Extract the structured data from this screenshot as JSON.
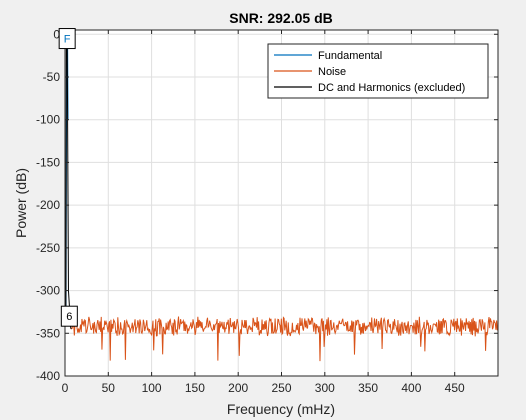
{
  "chart_data": {
    "type": "line",
    "title": "SNR: 292.05 dB",
    "xlabel": "Frequency (mHz)",
    "ylabel": "Power (dB)",
    "xlim": [
      0,
      500
    ],
    "ylim": [
      -400,
      5
    ],
    "x_ticks": [
      0,
      50,
      100,
      150,
      200,
      250,
      300,
      350,
      400,
      450
    ],
    "y_ticks": [
      0,
      -50,
      -100,
      -150,
      -200,
      -250,
      -300,
      -350,
      -400
    ],
    "grid": true,
    "legend_position": "top-right",
    "series": [
      {
        "name": "Fundamental",
        "color": "#0072bd",
        "x": [
          1.2,
          2.0,
          2.5,
          3.0,
          3.5
        ],
        "y": [
          -320,
          -5,
          0,
          -10,
          -100
        ]
      },
      {
        "name": "Noise",
        "color": "#d95319",
        "noise_profile": {
          "x_range": [
            6,
            500
          ],
          "mean_dB": -342,
          "fluctuation_dB": 10,
          "deep_dips_dB": -383
        }
      },
      {
        "name": "DC and Harmonics (excluded)",
        "color": "#000000",
        "x": [
          0,
          1.0,
          1.5,
          2.5,
          4.0,
          5.5,
          6.0,
          7.0
        ],
        "y": [
          -320,
          -330,
          -10,
          0,
          -300,
          -325,
          -340,
          -345
        ]
      }
    ],
    "annotations": [
      {
        "text": "F",
        "x": 2.5,
        "y": -5,
        "color": "#0072bd"
      },
      {
        "text": "6",
        "x": 5.0,
        "y": -330,
        "color": "#000000"
      }
    ]
  }
}
